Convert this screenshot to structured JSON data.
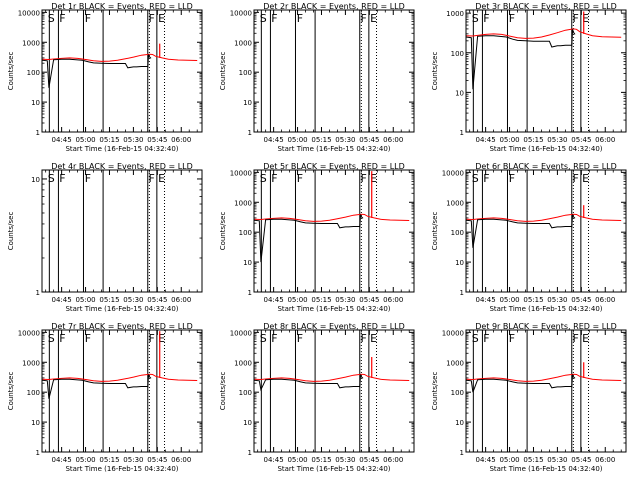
{
  "chart_data": {
    "type": "line",
    "common": {
      "xlabel": "Start Time (16-Feb-15 04:32:40)",
      "ylabel": "Counts/sec",
      "x_ticks": [
        "04:45",
        "05:00",
        "05:15",
        "05:30",
        "05:45",
        "06:00"
      ],
      "x_tick_minutes": [
        45,
        60,
        75,
        90,
        105,
        120
      ],
      "xlim_minutes": [
        32.7,
        133.0
      ],
      "yscale": "log",
      "series": [
        {
          "name": "Events",
          "color": "#000000"
        },
        {
          "name": "LLD",
          "color": "#ff0000"
        }
      ],
      "flag_line_minutes": [
        37.3,
        43.0,
        58.7,
        71.0,
        99.0,
        104.7
      ],
      "flag_dotted_minutes": [
        100.0,
        109.5
      ],
      "flags": [
        {
          "letter": "S",
          "minute": 36.3
        },
        {
          "letter": "F",
          "minute": 43.5
        },
        {
          "letter": "F",
          "minute": 59.5
        },
        {
          "letter": "F",
          "minute": 99.5
        },
        {
          "letter": "E",
          "minute": 105.5
        }
      ],
      "events_minutes": [
        32.7,
        36,
        37,
        40,
        45,
        50,
        58,
        62,
        65,
        70,
        75,
        80,
        85,
        86.5,
        90,
        92,
        95,
        99,
        99.5,
        100,
        101
      ],
      "events_counts": [
        250,
        240,
        110,
        260,
        270,
        270,
        250,
        220,
        205,
        200,
        195,
        195,
        195,
        140,
        150,
        150,
        155,
        155,
        390,
        330,
        290
      ],
      "lld_minutes": [
        32.7,
        37,
        40,
        45,
        50,
        55,
        58,
        65,
        70,
        75,
        80,
        85,
        90,
        95,
        100,
        102,
        104,
        108,
        112,
        118,
        124,
        130
      ],
      "lld_counts": [
        270,
        265,
        275,
        290,
        300,
        290,
        275,
        240,
        230,
        235,
        250,
        280,
        320,
        370,
        400,
        390,
        340,
        300,
        270,
        255,
        250,
        245
      ]
    },
    "panels": [
      {
        "title": "Det 1r  BLACK = Events, RED = LLD",
        "ylim": [
          1,
          12000
        ],
        "y_ticks": [
          "1",
          "10",
          "100",
          "1000",
          "10000"
        ],
        "events_dip_count": 30,
        "lld_spike_count": 900
      },
      {
        "title": "Det 2r  BLACK = Events, RED = LLD",
        "ylim": [
          1,
          12000
        ],
        "y_ticks": [
          "1",
          "10",
          "100",
          "1000",
          "10000"
        ],
        "events_dip_count": null,
        "lld_spike_count": null
      },
      {
        "title": "Det 3r  BLACK = Events, RED = LLD",
        "ylim": [
          1,
          1200
        ],
        "y_ticks": [
          "1",
          "10",
          "100",
          "1000"
        ],
        "events_dip_count": 12,
        "lld_spike_count": 1100
      },
      {
        "title": "Det 4r  BLACK = Events, RED = LLD",
        "ylim": [
          1,
          12
        ],
        "y_ticks": [
          "1",
          "10"
        ],
        "events_dip_count": null,
        "lld_spike_count": null
      },
      {
        "title": "Det 5r  BLACK = Events, RED = LLD",
        "ylim": [
          1,
          12000
        ],
        "y_ticks": [
          "1",
          "10",
          "100",
          "1000",
          "10000"
        ],
        "events_dip_count": 10,
        "lld_spike_count": 11000
      },
      {
        "title": "Det 6r  BLACK = Events, RED = LLD",
        "ylim": [
          1,
          12000
        ],
        "y_ticks": [
          "1",
          "10",
          "100",
          "1000",
          "10000"
        ],
        "events_dip_count": 30,
        "lld_spike_count": 800
      },
      {
        "title": "Det 7r  BLACK = Events, RED = LLD",
        "ylim": [
          1,
          12000
        ],
        "y_ticks": [
          "1",
          "10",
          "100",
          "1000",
          "10000"
        ],
        "events_dip_count": 60,
        "lld_spike_count": 11000
      },
      {
        "title": "Det 8r  BLACK = Events, RED = LLD",
        "ylim": [
          1,
          12000
        ],
        "y_ticks": [
          "1",
          "10",
          "100",
          "1000",
          "10000"
        ],
        "events_dip_count": 120,
        "lld_spike_count": 1500
      },
      {
        "title": "Det 9r  BLACK = Events, RED = LLD",
        "ylim": [
          1,
          12000
        ],
        "y_ticks": [
          "1",
          "10",
          "100",
          "1000",
          "10000"
        ],
        "events_dip_count": 100,
        "lld_spike_count": 1000
      }
    ]
  }
}
